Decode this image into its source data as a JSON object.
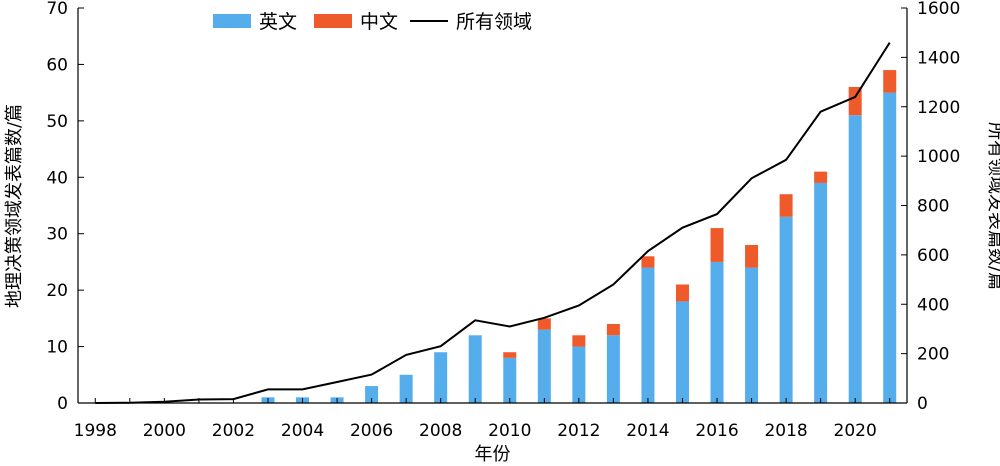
{
  "chart_data": {
    "type": "bar",
    "stacked": true,
    "categories": [
      "1998",
      "1999",
      "2000",
      "2001",
      "2002",
      "2003",
      "2004",
      "2005",
      "2006",
      "2007",
      "2008",
      "2009",
      "2010",
      "2011",
      "2012",
      "2013",
      "2014",
      "2015",
      "2016",
      "2017",
      "2018",
      "2019",
      "2020",
      "2021"
    ],
    "x_tick_labels": [
      "1998",
      "2000",
      "2002",
      "2004",
      "2006",
      "2008",
      "2010",
      "2012",
      "2014",
      "2016",
      "2018",
      "2020"
    ],
    "series": [
      {
        "name": "英文",
        "color": "#55AEEB",
        "axis": "left",
        "values": [
          0,
          0,
          0,
          0,
          0,
          1,
          1,
          1,
          3,
          5,
          9,
          12,
          8,
          13,
          10,
          12,
          24,
          18,
          25,
          24,
          33,
          39,
          51,
          55
        ]
      },
      {
        "name": "中文",
        "color": "#EE5A2A",
        "axis": "left",
        "values": [
          0,
          0,
          0,
          0,
          0,
          0,
          0,
          0,
          0,
          0,
          0,
          0,
          1,
          2,
          2,
          2,
          2,
          3,
          6,
          4,
          4,
          2,
          5,
          4
        ]
      }
    ],
    "line_series": {
      "name": "所有领域",
      "color": "#000000",
      "axis": "right",
      "values": [
        0,
        1,
        5,
        14,
        16,
        55,
        55,
        85,
        115,
        195,
        230,
        335,
        310,
        345,
        395,
        480,
        615,
        710,
        765,
        910,
        985,
        1180,
        1240,
        1460
      ]
    },
    "xlabel": "年份",
    "ylabel_left": "地理决策领域发表篇数/篇",
    "ylabel_right": "所有领域发表篇数/篇",
    "ylim_left": [
      0,
      70
    ],
    "ylim_right": [
      0,
      1600
    ],
    "yticks_left": [
      0,
      10,
      20,
      30,
      40,
      50,
      60,
      70
    ],
    "yticks_right": [
      0,
      200,
      400,
      600,
      800,
      1000,
      1200,
      1400,
      1600
    ],
    "grid": false,
    "legend_placement": "top-center"
  }
}
